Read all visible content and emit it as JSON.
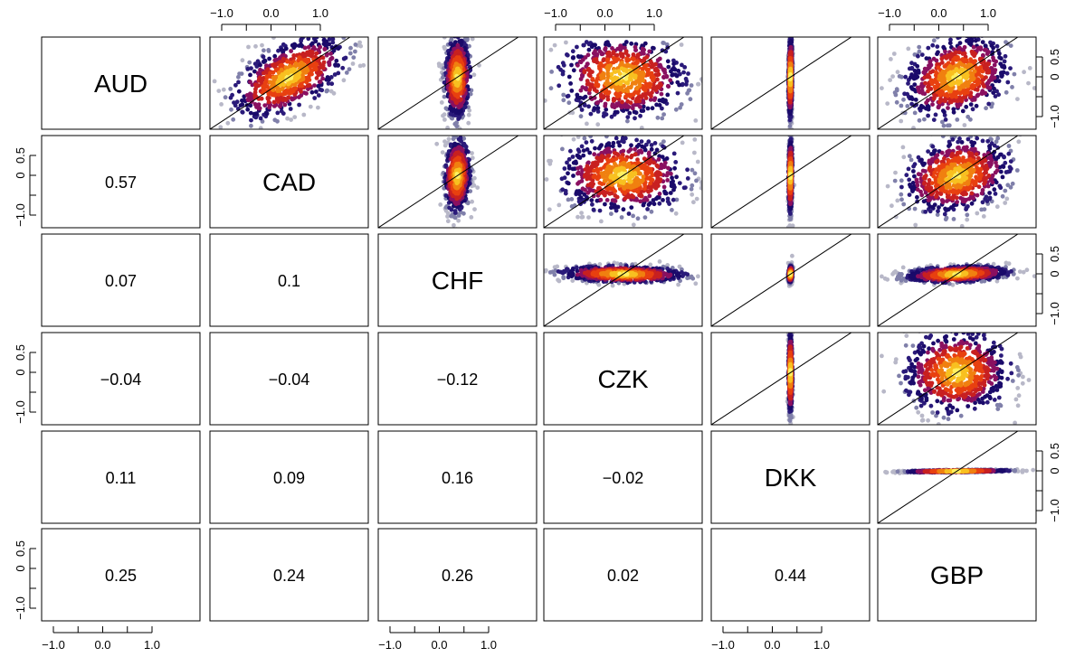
{
  "chart_data": {
    "type": "scatter",
    "variables": [
      "AUD",
      "CAD",
      "CHF",
      "CZK",
      "DKK",
      "GBP"
    ],
    "correlations": [
      {
        "row": "CAD",
        "col": "AUD",
        "label": "0.57",
        "value": 0.57
      },
      {
        "row": "CHF",
        "col": "AUD",
        "label": "0.07",
        "value": 0.07
      },
      {
        "row": "CHF",
        "col": "CAD",
        "label": "0.1",
        "value": 0.1
      },
      {
        "row": "CZK",
        "col": "AUD",
        "label": "−0.04",
        "value": -0.04
      },
      {
        "row": "CZK",
        "col": "CAD",
        "label": "−0.04",
        "value": -0.04
      },
      {
        "row": "CZK",
        "col": "CHF",
        "label": "−0.12",
        "value": -0.12
      },
      {
        "row": "DKK",
        "col": "AUD",
        "label": "0.11",
        "value": 0.11
      },
      {
        "row": "DKK",
        "col": "CAD",
        "label": "0.09",
        "value": 0.09
      },
      {
        "row": "DKK",
        "col": "CHF",
        "label": "0.16",
        "value": 0.16
      },
      {
        "row": "DKK",
        "col": "CZK",
        "label": "−0.02",
        "value": -0.02
      },
      {
        "row": "GBP",
        "col": "AUD",
        "label": "0.25",
        "value": 0.25
      },
      {
        "row": "GBP",
        "col": "CAD",
        "label": "0.24",
        "value": 0.24
      },
      {
        "row": "GBP",
        "col": "CHF",
        "label": "0.26",
        "value": 0.26
      },
      {
        "row": "GBP",
        "col": "CZK",
        "label": "0.02",
        "value": 0.02
      },
      {
        "row": "GBP",
        "col": "DKK",
        "label": "0.44",
        "value": 0.44
      }
    ],
    "spread": {
      "AUD": 0.5,
      "CAD": 0.45,
      "CHF": 0.1,
      "CZK": 0.5,
      "DKK": 0.015,
      "GBP": 0.42
    },
    "x_ticks": {
      "values": [
        -1.0,
        -0.5,
        0.0,
        0.5,
        1.0
      ],
      "labels": [
        "−1.0",
        "",
        "0.0",
        "",
        "1.0"
      ],
      "range": [
        -1.3,
        1.3
      ]
    },
    "y_ticks": {
      "values": [
        -1.0,
        -0.5,
        0.0,
        0.5
      ],
      "labels": [
        "−1.0",
        "",
        "0",
        "0.5"
      ],
      "range": [
        -1.3,
        1.0
      ]
    },
    "reference_line": "y = x",
    "density_colors": [
      "#b8b8c8",
      "#8080aa",
      "#2a1a7a",
      "#1a0a6a",
      "#8a1060",
      "#c82020",
      "#e84010",
      "#f08010",
      "#f8c020",
      "#fff060"
    ],
    "grid": false,
    "legend": "none"
  }
}
